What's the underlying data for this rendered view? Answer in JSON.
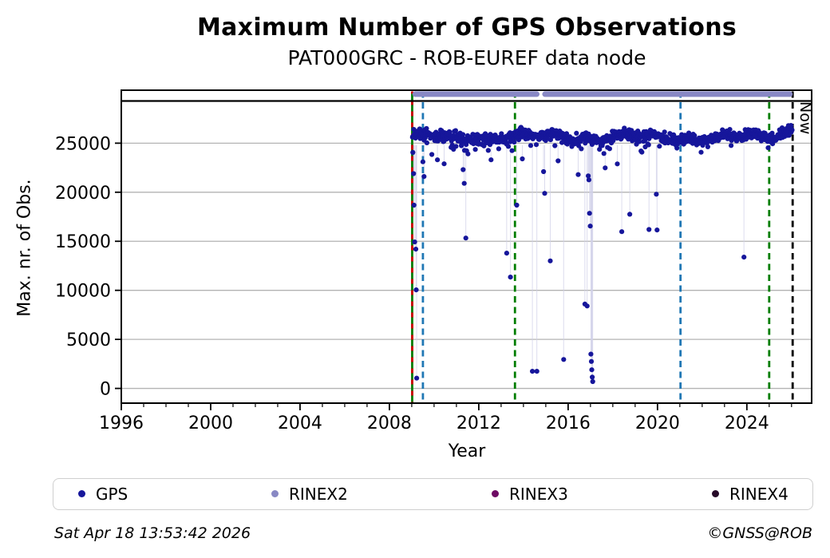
{
  "title": "Maximum Number of GPS Observations",
  "subtitle": "PAT000GRC - ROB-EUREF data node",
  "footer": {
    "timestamp": "Sat Apr 18 13:53:42 2026",
    "credit": "©GNSS@ROB"
  },
  "now_label": "Now",
  "legend": [
    {
      "label": "GPS",
      "color": "#16169b"
    },
    {
      "label": "RINEX2",
      "color": "#8888c4"
    },
    {
      "label": "RINEX3",
      "color": "#6e0a64"
    },
    {
      "label": "RINEX4",
      "color": "#260a28"
    }
  ],
  "chart_data": {
    "type": "scatter",
    "title": "Maximum Number of GPS Observations",
    "subtitle": "PAT000GRC - ROB-EUREF data node",
    "xlabel": "Year",
    "ylabel": "Max. nr. of Obs.",
    "xlim": [
      1996,
      2026.9
    ],
    "ylim": [
      -1500,
      30400
    ],
    "xticks_major": [
      1996,
      2000,
      2004,
      2008,
      2012,
      2016,
      2020,
      2024
    ],
    "xticks_minor_step": 1,
    "yticks": [
      0,
      5000,
      10000,
      15000,
      20000,
      25000
    ],
    "grid": true,
    "grid_color": "#b3b3b3",
    "frame_color": "#000000",
    "series": [
      {
        "name": "GPS",
        "color": "#16169b",
        "marker_radius": 3.1,
        "band": {
          "start": 2009.03,
          "end": 2026.04,
          "base": 25600,
          "wiggle1": 260,
          "wiggle2": 180,
          "noise": 480,
          "low_tail_prob": 0.055,
          "rise_after": 2025.1,
          "rise_rate": 1050,
          "max": 27350,
          "seed": 1234
        },
        "outliers": [
          [
            2009.05,
            24050
          ],
          [
            2009.08,
            21900
          ],
          [
            2009.1,
            18680
          ],
          [
            2009.13,
            14930
          ],
          [
            2009.18,
            14200
          ],
          [
            2009.2,
            10050
          ],
          [
            2009.22,
            1050
          ],
          [
            2009.5,
            23100
          ],
          [
            2009.55,
            21600
          ],
          [
            2009.9,
            23850
          ],
          [
            2010.15,
            23300
          ],
          [
            2010.45,
            22900
          ],
          [
            2011.3,
            22300
          ],
          [
            2011.35,
            20900
          ],
          [
            2011.42,
            15330
          ],
          [
            2012.55,
            23300
          ],
          [
            2013.25,
            13790
          ],
          [
            2013.42,
            11350
          ],
          [
            2013.7,
            18680
          ],
          [
            2013.95,
            23400
          ],
          [
            2014.4,
            1750
          ],
          [
            2014.6,
            1750
          ],
          [
            2014.9,
            22100
          ],
          [
            2014.95,
            19890
          ],
          [
            2015.2,
            13000
          ],
          [
            2015.55,
            23200
          ],
          [
            2015.8,
            2950
          ],
          [
            2016.45,
            21800
          ],
          [
            2016.75,
            8600
          ],
          [
            2016.85,
            8400
          ],
          [
            2016.9,
            21670
          ],
          [
            2016.93,
            21260
          ],
          [
            2016.96,
            17850
          ],
          [
            2016.99,
            16550
          ],
          [
            2017.02,
            3500
          ],
          [
            2017.04,
            2750
          ],
          [
            2017.06,
            1900
          ],
          [
            2017.08,
            1150
          ],
          [
            2017.1,
            700
          ],
          [
            2017.6,
            23950
          ],
          [
            2017.66,
            22480
          ],
          [
            2018.2,
            22890
          ],
          [
            2018.4,
            15980
          ],
          [
            2018.76,
            17750
          ],
          [
            2019.62,
            16200
          ],
          [
            2019.95,
            19800
          ],
          [
            2019.98,
            16150
          ],
          [
            2023.87,
            13380
          ]
        ],
        "dropline_color": "#d0d0e8",
        "dropline_top": 24800,
        "dropline_below": 23800
      },
      {
        "name": "RINEX2",
        "color": "#8888c4",
        "availability_bar": {
          "start": 2009.03,
          "end": 2026.05,
          "y": 30000,
          "thickness": 7,
          "gaps": [
            [
              2014.72,
              2014.84
            ]
          ]
        }
      },
      {
        "name": "RINEX3",
        "color": "#6e0a64",
        "points": []
      },
      {
        "name": "RINEX4",
        "color": "#260a28",
        "points": []
      }
    ],
    "hline": {
      "y": 29300,
      "color": "#000000",
      "width": 2.2
    },
    "vlines": [
      {
        "x": 2009.02,
        "color": "#007d00",
        "style": "solid",
        "overlay_color": "#d40000",
        "overlay_dash": [
          6,
          8
        ]
      },
      {
        "x": 2009.5,
        "color": "#1f77b4",
        "style": "dashed"
      },
      {
        "x": 2013.62,
        "color": "#007d00",
        "style": "dashed"
      },
      {
        "x": 2021.03,
        "color": "#1f77b4",
        "style": "dashed"
      },
      {
        "x": 2025.0,
        "color": "#007d00",
        "style": "dashed"
      },
      {
        "x": 2026.05,
        "color": "#000000",
        "style": "dashed",
        "label": "Now"
      }
    ]
  }
}
